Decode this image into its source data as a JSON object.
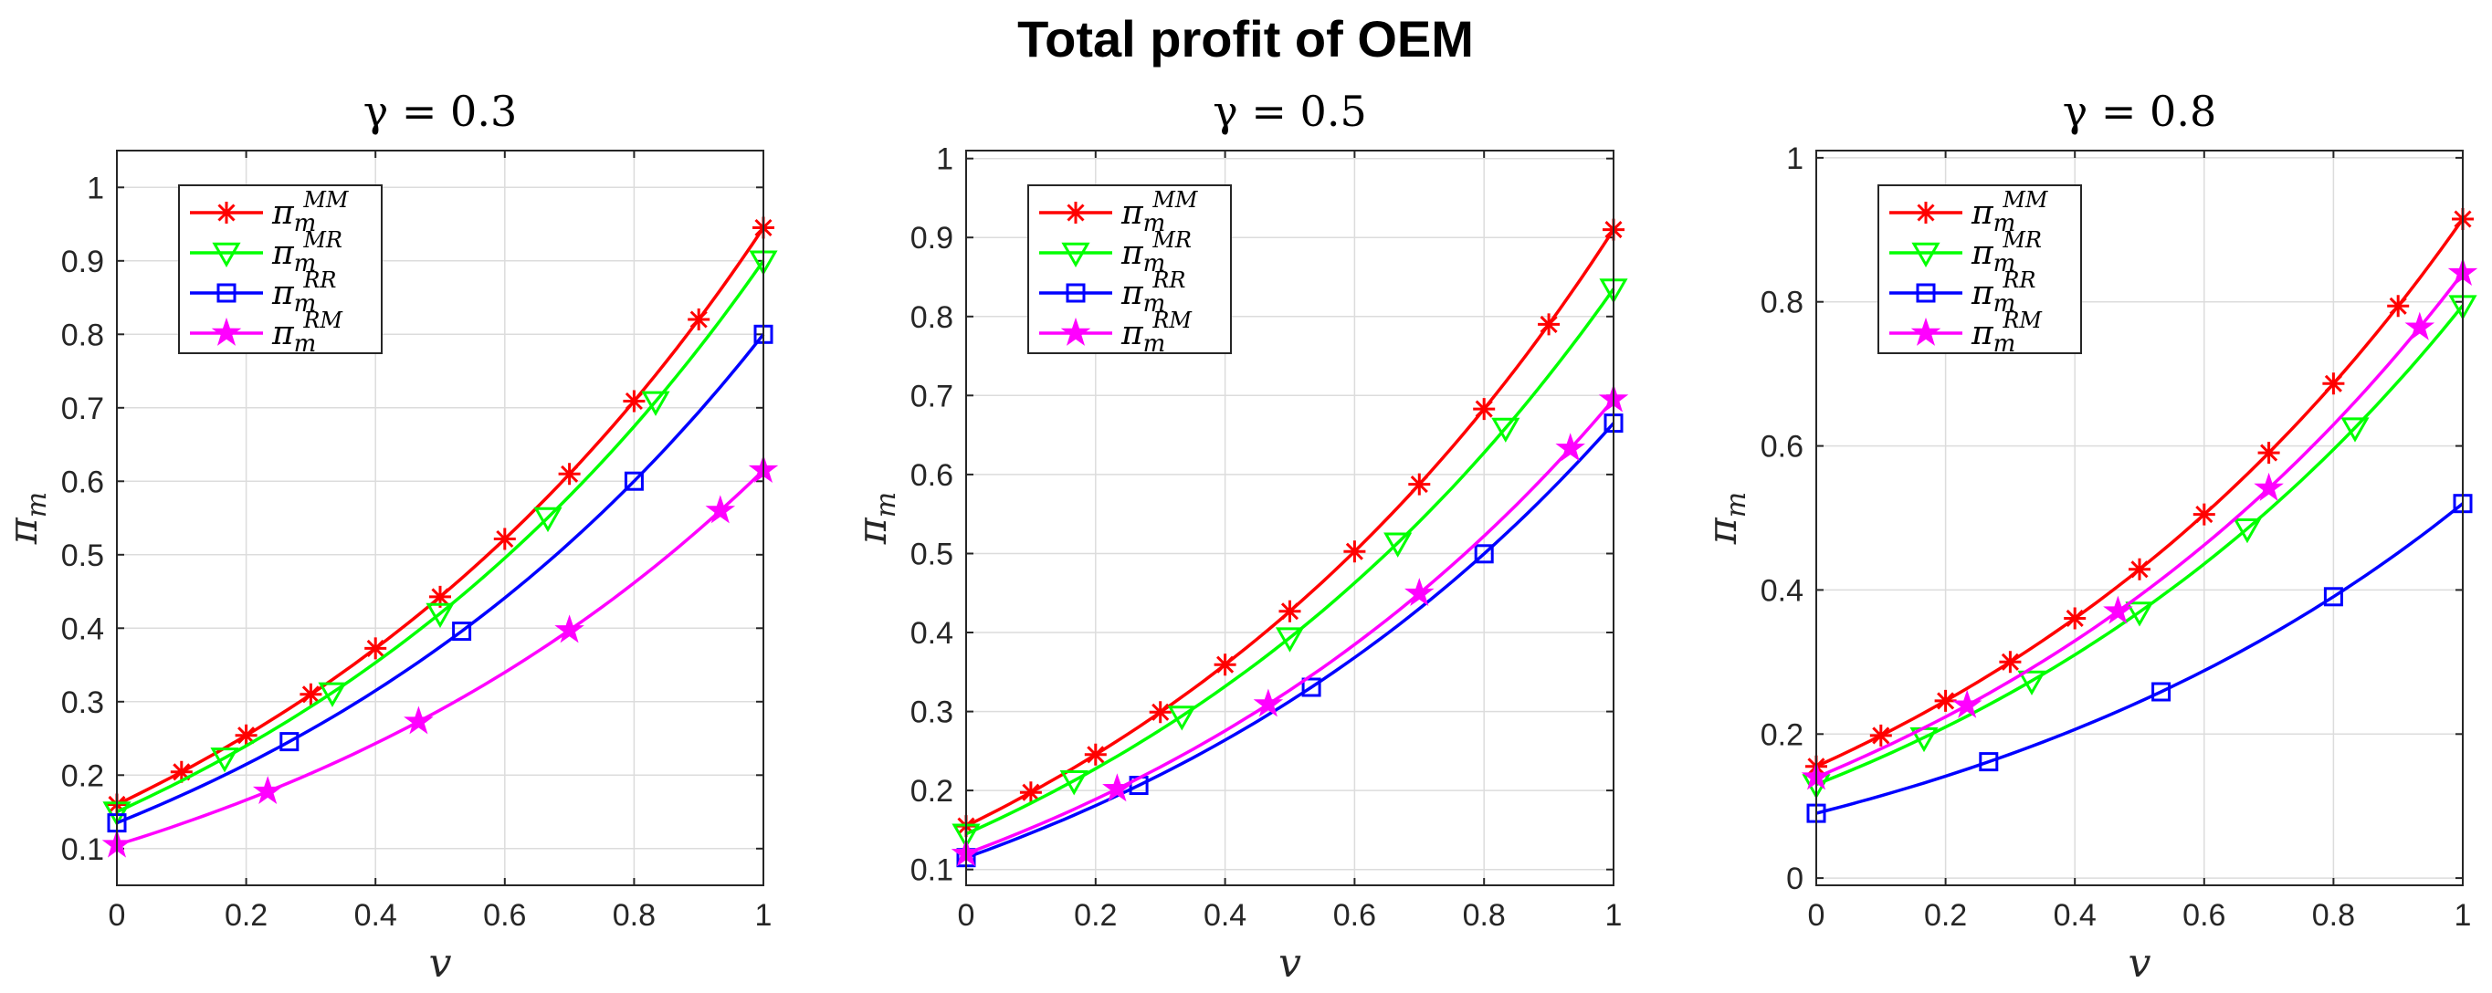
{
  "title": "Total profit of OEM",
  "colors": {
    "MM": "#ff0000",
    "MR": "#00ff00",
    "RR": "#0000ff",
    "RM": "#ff00ff"
  },
  "chart_data": [
    {
      "type": "line",
      "title": "γ = 0.3",
      "xlabel": "v",
      "ylabel": "π_m",
      "xlim": [
        0,
        1
      ],
      "ylim": [
        0.05,
        1.05
      ],
      "xticks": [
        0,
        0.2,
        0.4,
        0.6,
        0.8,
        1
      ],
      "xtick_labels": [
        "0",
        "0.2",
        "0.4",
        "0.6",
        "0.8",
        "1"
      ],
      "yticks": [
        0.1,
        0.2,
        0.3,
        0.4,
        0.5,
        0.6,
        0.7,
        0.8,
        0.9,
        1
      ],
      "ytick_labels": [
        "0.1",
        "0.2",
        "0.3",
        "0.4",
        "0.5",
        "0.6",
        "0.7",
        "0.8",
        "0.9",
        "1"
      ],
      "grid": true,
      "legend": "top-left",
      "series": [
        {
          "key": "MM",
          "name": "π_m^MM",
          "base": "π",
          "sub": "m",
          "sup": "MM",
          "marker": "asterisk",
          "start": 0.16,
          "end": 0.945,
          "mstep": 6
        },
        {
          "key": "MR",
          "name": "π_m^MR",
          "base": "π",
          "sub": "m",
          "sup": "MR",
          "marker": "triangle-down",
          "start": 0.15,
          "end": 0.9,
          "mstep": 10
        },
        {
          "key": "RR",
          "name": "π_m^RR",
          "base": "π",
          "sub": "m",
          "sup": "RR",
          "marker": "square",
          "start": 0.135,
          "end": 0.8,
          "mstep": 16
        },
        {
          "key": "RM",
          "name": "π_m^RM",
          "base": "π",
          "sub": "m",
          "sup": "RM",
          "marker": "star",
          "start": 0.105,
          "end": 0.615,
          "mstep": 14
        }
      ]
    },
    {
      "type": "line",
      "title": "γ = 0.5",
      "xlabel": "v",
      "ylabel": "π_m",
      "xlim": [
        0,
        1
      ],
      "ylim": [
        0.08,
        1.01
      ],
      "xticks": [
        0,
        0.2,
        0.4,
        0.6,
        0.8,
        1
      ],
      "xtick_labels": [
        "0",
        "0.2",
        "0.4",
        "0.6",
        "0.8",
        "1"
      ],
      "yticks": [
        0.1,
        0.2,
        0.3,
        0.4,
        0.5,
        0.6,
        0.7,
        0.8,
        0.9,
        1
      ],
      "ytick_labels": [
        "0.1",
        "0.2",
        "0.3",
        "0.4",
        "0.5",
        "0.6",
        "0.7",
        "0.8",
        "0.9",
        "1"
      ],
      "grid": true,
      "legend": "top-left",
      "series": [
        {
          "key": "MM",
          "name": "π_m^MM",
          "base": "π",
          "sub": "m",
          "sup": "MM",
          "marker": "asterisk",
          "start": 0.155,
          "end": 0.91,
          "mstep": 6
        },
        {
          "key": "MR",
          "name": "π_m^MR",
          "base": "π",
          "sub": "m",
          "sup": "MR",
          "marker": "triangle-down",
          "start": 0.145,
          "end": 0.835,
          "mstep": 10
        },
        {
          "key": "RR",
          "name": "π_m^RR",
          "base": "π",
          "sub": "m",
          "sup": "RR",
          "marker": "square",
          "start": 0.115,
          "end": 0.665,
          "mstep": 16
        },
        {
          "key": "RM",
          "name": "π_m^RM",
          "base": "π",
          "sub": "m",
          "sup": "RM",
          "marker": "star",
          "start": 0.12,
          "end": 0.695,
          "mstep": 14
        }
      ]
    },
    {
      "type": "line",
      "title": "γ = 0.8",
      "xlabel": "v",
      "ylabel": "π_m",
      "xlim": [
        0,
        1
      ],
      "ylim": [
        -0.01,
        1.01
      ],
      "xticks": [
        0,
        0.2,
        0.4,
        0.6,
        0.8,
        1
      ],
      "xtick_labels": [
        "0",
        "0.2",
        "0.4",
        "0.6",
        "0.8",
        "1"
      ],
      "yticks": [
        0,
        0.2,
        0.4,
        0.6,
        0.8,
        1
      ],
      "ytick_labels": [
        "0",
        "0.2",
        "0.4",
        "0.6",
        "0.8",
        "1"
      ],
      "grid": true,
      "legend": "top-left",
      "series": [
        {
          "key": "MM",
          "name": "π_m^MM",
          "base": "π",
          "sub": "m",
          "sup": "MM",
          "marker": "asterisk",
          "start": 0.155,
          "end": 0.915,
          "mstep": 6
        },
        {
          "key": "MR",
          "name": "π_m^MR",
          "base": "π",
          "sub": "m",
          "sup": "MR",
          "marker": "triangle-down",
          "start": 0.13,
          "end": 0.795,
          "mstep": 10
        },
        {
          "key": "RR",
          "name": "π_m^RR",
          "base": "π",
          "sub": "m",
          "sup": "RR",
          "marker": "square",
          "start": 0.09,
          "end": 0.52,
          "mstep": 16
        },
        {
          "key": "RM",
          "name": "π_m^RM",
          "base": "π",
          "sub": "m",
          "sup": "RM",
          "marker": "star",
          "start": 0.14,
          "end": 0.84,
          "mstep": 14
        }
      ]
    }
  ]
}
